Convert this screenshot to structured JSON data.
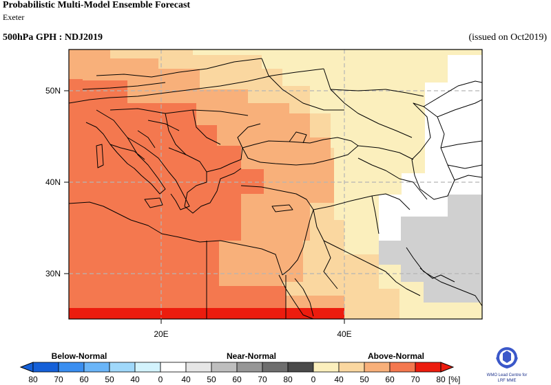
{
  "header": {
    "title": "Probabilistic Multi-Model Ensemble Forecast",
    "center": "Exeter",
    "field": "500hPa GPH : NDJ2019",
    "issued": "(issued on Oct2019)"
  },
  "map": {
    "lat_ticks": [
      "50N",
      "40N",
      "30N"
    ],
    "lon_ticks": [
      "20E",
      "40E"
    ],
    "colors": {
      "above_40": "#fbefbd",
      "above_50": "#fad7a0",
      "above_60": "#f8b07a",
      "above_70": "#f4784f",
      "above_80": "#ec1c0e",
      "near_normal": "#d0d0d0",
      "no_signal": "#ffffff"
    }
  },
  "legend": {
    "below_label": "Below-Normal",
    "near_label": "Near-Normal",
    "above_label": "Above-Normal",
    "unit": "[%]",
    "ticks": [
      "80",
      "70",
      "60",
      "50",
      "40",
      "0",
      "40",
      "50",
      "60",
      "70",
      "80",
      "0",
      "40",
      "50",
      "60",
      "70",
      "80"
    ],
    "below_colors": [
      "#1560d8",
      "#3a8ef0",
      "#6ab5f8",
      "#a0d8fa",
      "#d3f3fd"
    ],
    "near_colors": [
      "#ffffff",
      "#e6e6e6",
      "#bebebe",
      "#969696",
      "#6e6e6e",
      "#4a4a4a"
    ],
    "above_colors": [
      "#fbefbd",
      "#fad7a0",
      "#f8b07a",
      "#f4784f",
      "#ec1c0e"
    ]
  },
  "logo": {
    "line1": "WMO Lead Centre for",
    "line2": "LRF MME"
  }
}
